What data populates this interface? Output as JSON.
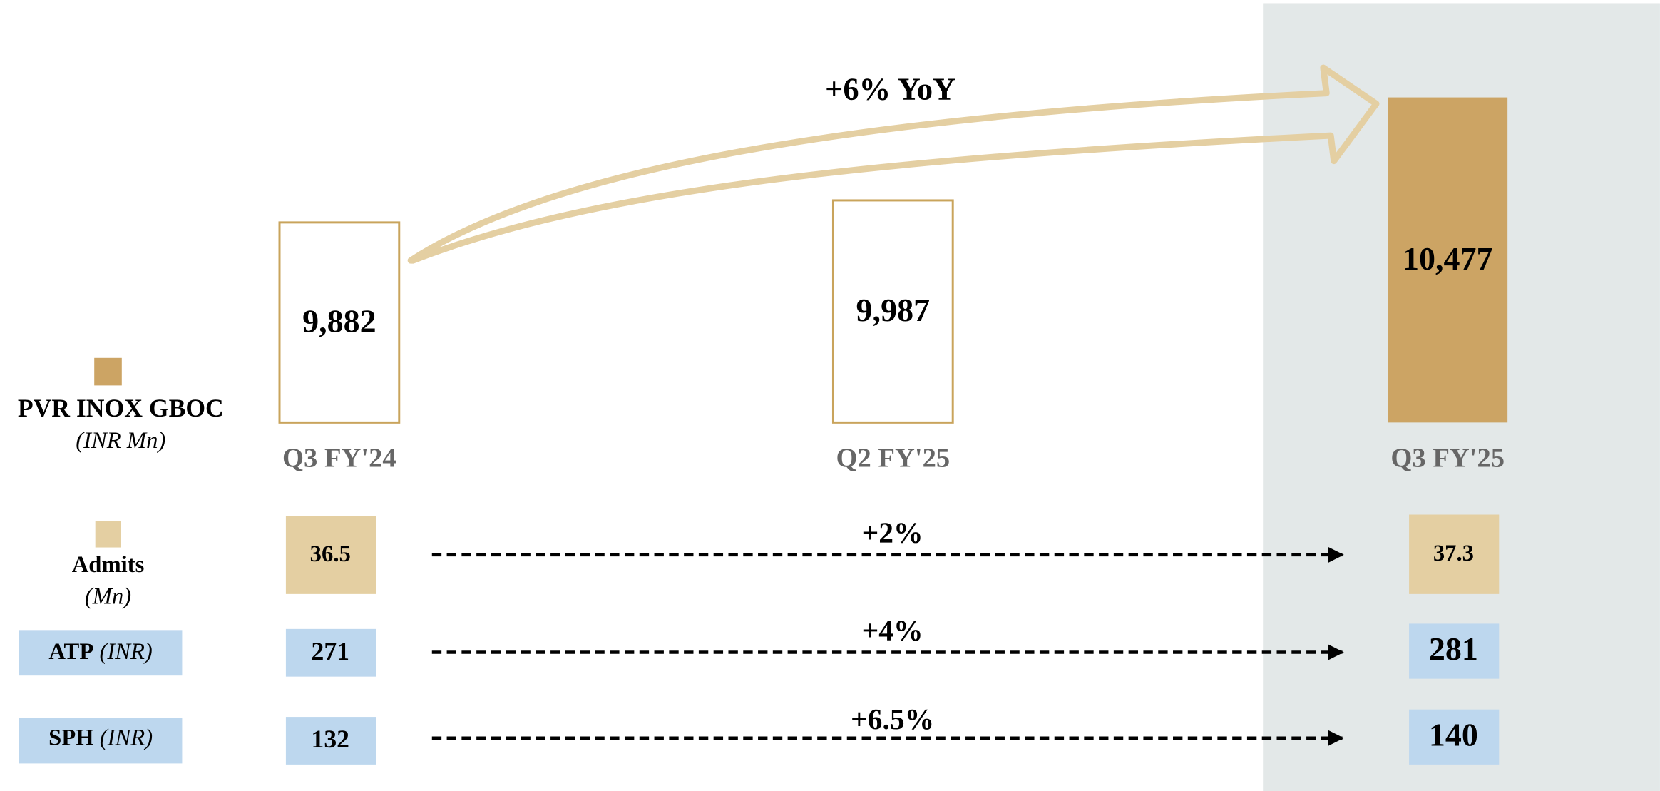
{
  "chart_data": {
    "type": "bar",
    "series_name": "PVR INOX GBOC",
    "unit": "(INR Mn)",
    "categories": [
      "Q3 FY'24",
      "Q2 FY'25",
      "Q3 FY'25"
    ],
    "values": [
      9882,
      9987,
      10477
    ],
    "value_labels": [
      "9,882",
      "9,987",
      "10,477"
    ],
    "color": "#cca464",
    "annotation": "+6% YoY"
  },
  "metrics": [
    {
      "name": "Admits",
      "unit": "(Mn)",
      "from": 36.5,
      "to": 37.3,
      "change": "+2%",
      "color": "#e4cfa2"
    },
    {
      "name": "ATP",
      "unit": "(INR)",
      "from": 271,
      "to": 281,
      "change": "+4%",
      "color": "#bdd7ee"
    },
    {
      "name": "SPH",
      "unit": "(INR)",
      "from": 132,
      "to": 140,
      "change": "+6.5%",
      "color": "#bdd7ee"
    }
  ]
}
